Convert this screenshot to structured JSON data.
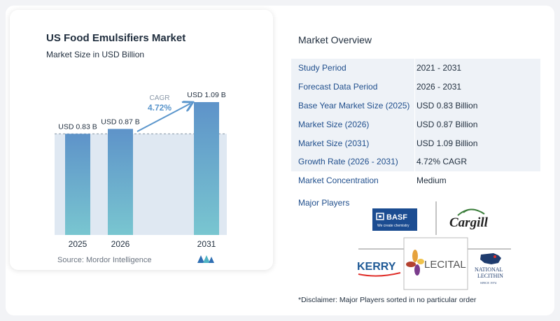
{
  "chart": {
    "title": "US Food Emulsifiers Market",
    "subtitle": "Market Size in USD Billion",
    "source": "Source: Mordor Intelligence",
    "cagr_label": "CAGR",
    "cagr_value": "4.72%"
  },
  "chart_data": {
    "type": "bar",
    "categories": [
      "2025",
      "2026",
      "2031"
    ],
    "values": [
      0.83,
      0.87,
      1.09
    ],
    "value_labels": [
      "USD 0.83 B",
      "USD 0.87 B",
      "USD 1.09 B"
    ],
    "title": "US Food Emulsifiers Market",
    "ylabel": "Market Size in USD Billion",
    "ylim": [
      0,
      1.09
    ],
    "colors": {
      "bar_top": "#5e93c9",
      "bar_bottom": "#79c6d0",
      "shade": "#dfe8f2",
      "arrow": "#5b96cc",
      "dashed": "#8a98a8"
    }
  },
  "overview": {
    "title": "Market Overview",
    "rows": [
      {
        "label": "Study Period",
        "value": "2021 - 2031"
      },
      {
        "label": "Forecast Data Period",
        "value": "2026 - 2031"
      },
      {
        "label": "Base Year Market Size (2025)",
        "value": "USD 0.83 Billion"
      },
      {
        "label": "Market Size (2026)",
        "value": "USD 0.87 Billion"
      },
      {
        "label": "Market Size (2031)",
        "value": "USD 1.09 Billion"
      },
      {
        "label": "Growth Rate (2026 - 2031)",
        "value": "4.72% CAGR"
      },
      {
        "label": "Market Concentration",
        "value": "Medium"
      }
    ]
  },
  "players": {
    "title": "Major Players",
    "logos": {
      "basf": {
        "name": "BASF",
        "tagline": "We create chemistry",
        "color": "#1b4c91"
      },
      "cargill": {
        "name": "Cargill",
        "color": "#222222"
      },
      "kerry": {
        "name": "KERRY",
        "color": "#1f5a96"
      },
      "lecital": {
        "name": "LECITAL",
        "color": "#555555"
      },
      "national": {
        "line1": "NATIONAL",
        "line2": "LECITHIN",
        "line3": "SINCE 1974",
        "color": "#1f3c6e"
      }
    },
    "disclaimer": "*Disclaimer: Major Players sorted in no particular order"
  }
}
